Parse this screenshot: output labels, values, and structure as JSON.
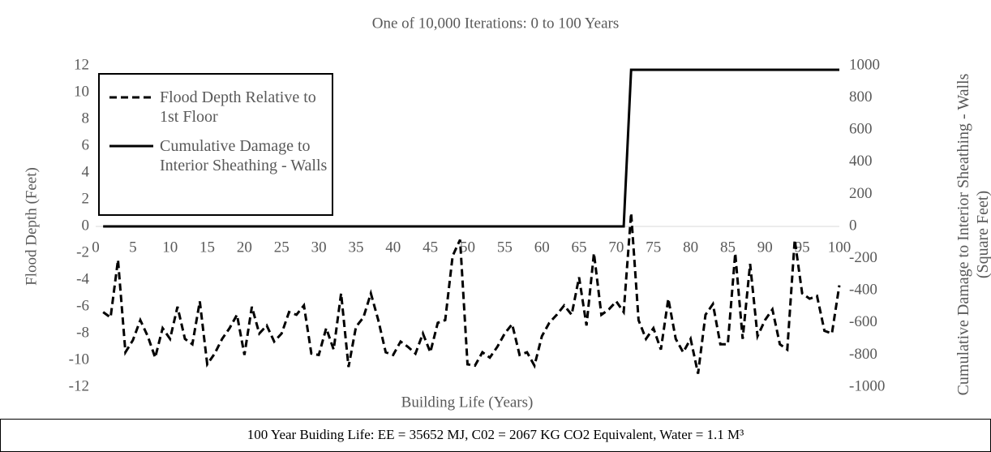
{
  "chart_data": {
    "type": "line",
    "title": "One of 10,000 Iterations: 0 to 100 Years",
    "x_label": "Building Life (Years)",
    "y_label": "Flood Depth (Feet)",
    "y2_label": "Cumulative Damage to Interior Sheathing - Walls (Square Feet)",
    "footer": "100 Year Buiding Life:  EE   = 35652 MJ, C02 = 2067 KG CO2 Equivalent, Water = 1.1 M³",
    "x": [
      1,
      2,
      3,
      4,
      5,
      6,
      7,
      8,
      9,
      10,
      11,
      12,
      13,
      14,
      15,
      16,
      17,
      18,
      19,
      20,
      21,
      22,
      23,
      24,
      25,
      26,
      27,
      28,
      29,
      30,
      31,
      32,
      33,
      34,
      35,
      36,
      37,
      38,
      39,
      40,
      41,
      42,
      43,
      44,
      45,
      46,
      47,
      48,
      49,
      50,
      51,
      52,
      53,
      54,
      55,
      56,
      57,
      58,
      59,
      60,
      61,
      62,
      63,
      64,
      65,
      66,
      67,
      68,
      69,
      70,
      71,
      72,
      73,
      74,
      75,
      76,
      77,
      78,
      79,
      80,
      81,
      82,
      83,
      84,
      85,
      86,
      87,
      88,
      89,
      90,
      91,
      92,
      93,
      94,
      95,
      96,
      97,
      98,
      99,
      100
    ],
    "series": [
      {
        "name": "Flood Depth Relative to 1st Floor",
        "color": "#000000",
        "dash": true,
        "axis": "y",
        "values": [
          -6.4,
          -6.8,
          -2.5,
          -9.4,
          -8.5,
          -7.0,
          -8.2,
          -9.8,
          -7.6,
          -8.4,
          -6.0,
          -8.4,
          -8.8,
          -5.6,
          -10.3,
          -9.5,
          -8.4,
          -7.6,
          -6.6,
          -9.6,
          -6.0,
          -8.0,
          -7.4,
          -8.6,
          -8.0,
          -6.4,
          -6.6,
          -5.9,
          -9.5,
          -9.6,
          -7.6,
          -9.2,
          -5.0,
          -10.5,
          -7.5,
          -6.8,
          -5.0,
          -7.0,
          -9.4,
          -9.6,
          -8.6,
          -9.0,
          -9.5,
          -8.0,
          -9.4,
          -7.2,
          -7.0,
          -2.2,
          -1.0,
          -10.3,
          -10.4,
          -9.4,
          -9.8,
          -9.0,
          -8.0,
          -7.3,
          -9.6,
          -9.4,
          -10.4,
          -8.2,
          -7.2,
          -6.6,
          -5.9,
          -6.6,
          -3.8,
          -7.4,
          -2.0,
          -6.6,
          -6.2,
          -5.6,
          -6.4,
          1.0,
          -7.0,
          -8.4,
          -7.6,
          -9.2,
          -5.4,
          -8.4,
          -9.4,
          -8.4,
          -11.0,
          -6.6,
          -5.8,
          -8.8,
          -8.8,
          -2.0,
          -8.4,
          -2.8,
          -8.2,
          -7.0,
          -6.2,
          -8.8,
          -9.2,
          -1.0,
          -5.0,
          -5.4,
          -5.2,
          -7.8,
          -8.0,
          -4.4
        ]
      },
      {
        "name": "Cumulative Damage to Interior Sheathing - Walls",
        "color": "#000000",
        "dash": false,
        "axis": "y2",
        "values": [
          0,
          0,
          0,
          0,
          0,
          0,
          0,
          0,
          0,
          0,
          0,
          0,
          0,
          0,
          0,
          0,
          0,
          0,
          0,
          0,
          0,
          0,
          0,
          0,
          0,
          0,
          0,
          0,
          0,
          0,
          0,
          0,
          0,
          0,
          0,
          0,
          0,
          0,
          0,
          0,
          0,
          0,
          0,
          0,
          0,
          0,
          0,
          0,
          0,
          0,
          0,
          0,
          0,
          0,
          0,
          0,
          0,
          0,
          0,
          0,
          0,
          0,
          0,
          0,
          0,
          0,
          0,
          0,
          0,
          0,
          0,
          975,
          975,
          975,
          975,
          975,
          975,
          975,
          975,
          975,
          975,
          975,
          975,
          975,
          975,
          975,
          975,
          975,
          975,
          975,
          975,
          975,
          975,
          975,
          975,
          975,
          975,
          975,
          975,
          975
        ]
      }
    ],
    "xlim": [
      0,
      100
    ],
    "xticks": [
      0,
      5,
      10,
      15,
      20,
      25,
      30,
      35,
      40,
      45,
      50,
      55,
      60,
      65,
      70,
      75,
      80,
      85,
      90,
      95,
      100
    ],
    "ylim": [
      -12,
      12
    ],
    "yticks": [
      -12,
      -10,
      -8,
      -6,
      -4,
      -2,
      0,
      2,
      4,
      6,
      8,
      10,
      12
    ],
    "y2lim": [
      -1000,
      1000
    ],
    "y2ticks": [
      -1000,
      -800,
      -600,
      -400,
      -200,
      0,
      200,
      400,
      600,
      800,
      1000
    ],
    "legend": "upper left",
    "grid": false
  }
}
